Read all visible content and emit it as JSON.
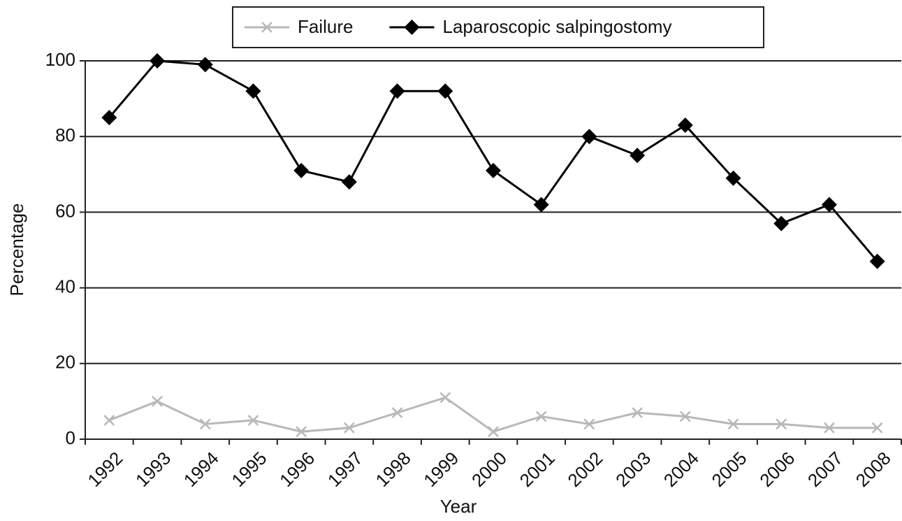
{
  "chart_data": {
    "type": "line",
    "categories": [
      "1992",
      "1993",
      "1994",
      "1995",
      "1996",
      "1997",
      "1998",
      "1999",
      "2000",
      "2001",
      "2002",
      "2003",
      "2004",
      "2005",
      "2006",
      "2007",
      "2008"
    ],
    "series": [
      {
        "name": "Failure",
        "color": "#b8b8b8",
        "marker": "x",
        "values": [
          5,
          10,
          4,
          5,
          2,
          3,
          7,
          11,
          2,
          6,
          4,
          7,
          6,
          4,
          4,
          3,
          3
        ]
      },
      {
        "name": "Laparoscopic salpingostomy",
        "color": "#000000",
        "marker": "diamond",
        "values": [
          85,
          100,
          99,
          92,
          71,
          68,
          92,
          92,
          71,
          62,
          80,
          75,
          83,
          69,
          57,
          62,
          47
        ]
      }
    ],
    "xlabel": "Year",
    "ylabel": "Percentage",
    "ylim": [
      0,
      100
    ],
    "yticks": [
      0,
      20,
      40,
      60,
      80,
      100
    ],
    "grid": true,
    "legend": "top"
  }
}
